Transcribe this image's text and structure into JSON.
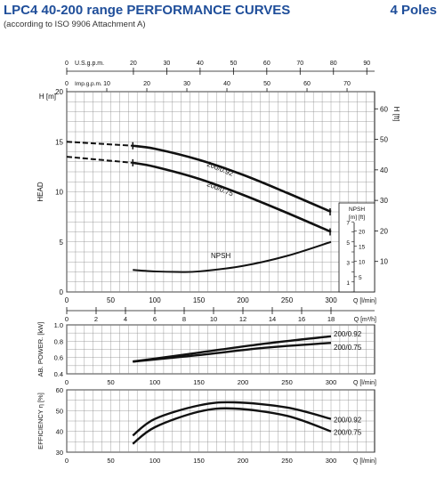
{
  "header": {
    "title": "LPC4 40-200 range PERFORMANCE CURVES",
    "subtitle": "(according to ISO 9906 Attachment A)",
    "poles": "4 Poles"
  },
  "chart_data": [
    {
      "type": "line",
      "name": "head",
      "ylabel": "HEAD",
      "ylabel_right": "H [ft]",
      "y_unit_left": "H [m]",
      "ylim": [
        0,
        20
      ],
      "yticks": [
        0,
        5,
        10,
        15,
        20
      ],
      "yticks_right": [
        10,
        20,
        30,
        40,
        50,
        60
      ],
      "xlim": [
        0,
        300
      ],
      "xticks": [
        0,
        50,
        100,
        150,
        200,
        250,
        300
      ],
      "xlabel": "Q [l/min]",
      "xticks_m3h": [
        0,
        2,
        4,
        6,
        8,
        10,
        12,
        14,
        16,
        18
      ],
      "xlabel_m3h": "Q [m³/h]",
      "top_axis_usgpm_label": "U.S.g.p.m.",
      "top_axis_usgpm_ticks": [
        0,
        20,
        30,
        40,
        50,
        60,
        70,
        80,
        90
      ],
      "top_axis_imp_label": "Imp.g.p.m.",
      "top_axis_imp_ticks": [
        0,
        10,
        20,
        30,
        40,
        50,
        60,
        70
      ],
      "series": [
        {
          "name": "200/0.92",
          "x": [
            0,
            75,
            100,
            150,
            200,
            250,
            300
          ],
          "y": [
            15.0,
            14.6,
            14.3,
            13.2,
            11.7,
            9.9,
            8.0
          ],
          "dashed_until": 75
        },
        {
          "name": "200/0.75",
          "x": [
            0,
            75,
            100,
            150,
            200,
            250,
            300
          ],
          "y": [
            13.5,
            12.9,
            12.5,
            11.3,
            9.7,
            7.9,
            6.0
          ],
          "dashed_until": 75
        }
      ],
      "npsh": {
        "name": "NPSH",
        "x": [
          75,
          100,
          125,
          150,
          200,
          250,
          300
        ],
        "y": [
          2.2,
          2.05,
          2.0,
          2.05,
          2.6,
          3.6,
          5.0
        ],
        "inset_label": "NPSH",
        "inset_units": "[m] [ft]",
        "inset_m_ticks": [
          1,
          3,
          5,
          7
        ],
        "inset_ft_ticks": [
          5,
          10,
          15,
          20
        ]
      }
    },
    {
      "type": "line",
      "name": "power",
      "ylabel": "AB. POWER. [kW]",
      "ylim": [
        0.4,
        1.0
      ],
      "yticks": [
        0.4,
        0.6,
        0.8,
        1.0
      ],
      "xlim": [
        0,
        300
      ],
      "xticks": [
        0,
        50,
        100,
        150,
        200,
        250,
        300
      ],
      "xlabel": "Q [l/min]",
      "series": [
        {
          "name": "200/0.92",
          "x": [
            75,
            150,
            225,
            300
          ],
          "y": [
            0.55,
            0.66,
            0.77,
            0.86
          ]
        },
        {
          "name": "200/0.75",
          "x": [
            75,
            150,
            225,
            300
          ],
          "y": [
            0.55,
            0.63,
            0.72,
            0.78
          ]
        }
      ]
    },
    {
      "type": "line",
      "name": "efficiency",
      "ylabel": "EFFICIENCY η [%]",
      "ylim": [
        30,
        60
      ],
      "yticks": [
        30,
        40,
        50,
        60
      ],
      "xlim": [
        0,
        300
      ],
      "xticks": [
        0,
        50,
        100,
        150,
        200,
        250,
        300
      ],
      "xlabel": "Q [l/min]",
      "series": [
        {
          "name": "200/0.92",
          "x": [
            75,
            100,
            150,
            190,
            250,
            300
          ],
          "y": [
            38,
            46,
            52.5,
            54,
            51.5,
            46
          ]
        },
        {
          "name": "200/0.75",
          "x": [
            75,
            100,
            150,
            190,
            250,
            300
          ],
          "y": [
            34,
            42,
            49.5,
            51,
            47.5,
            40
          ]
        }
      ]
    }
  ]
}
